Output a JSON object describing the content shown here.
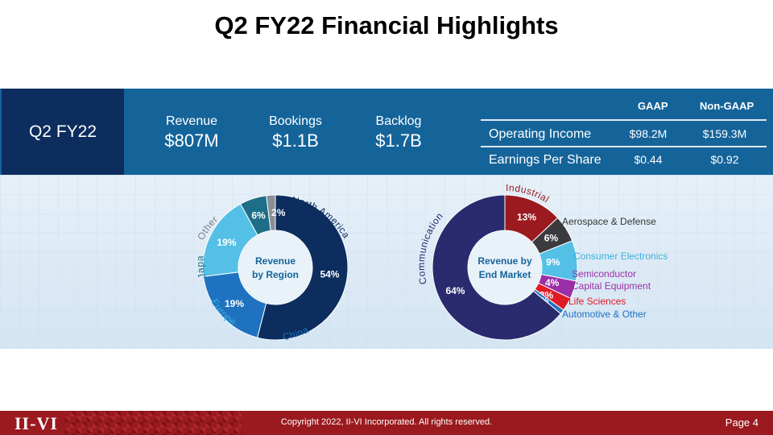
{
  "title": "Q2 FY22 Financial Highlights",
  "period": "Q2 FY22",
  "metrics": [
    {
      "label": "Revenue",
      "value": "$807M"
    },
    {
      "label": "Bookings",
      "value": "$1.1B"
    },
    {
      "label": "Backlog",
      "value": "$1.7B"
    }
  ],
  "table": {
    "headers": [
      "GAAP",
      "Non-GAAP"
    ],
    "rows": [
      {
        "label": "Operating Income",
        "gaap": "$98.2M",
        "non_gaap": "$159.3M"
      },
      {
        "label": "Earnings Per Share",
        "gaap": "$0.44",
        "non_gaap": "$0.92"
      }
    ]
  },
  "chart_data": [
    {
      "type": "pie",
      "title": "Revenue by Region",
      "center_label": [
        "Revenue",
        "by Region"
      ],
      "slices": [
        {
          "name": "North America",
          "value": 54,
          "label": "54%",
          "color": "#0c2d5e"
        },
        {
          "name": "China",
          "value": 19,
          "label": "19%",
          "color": "#1f72c0"
        },
        {
          "name": "Europe",
          "value": 19,
          "label": "19%",
          "color": "#54c0e6"
        },
        {
          "name": "Japan",
          "value": 6,
          "label": "6%",
          "color": "#1e6e88"
        },
        {
          "name": "Other",
          "value": 2,
          "label": "2%",
          "color": "#8a8f96"
        }
      ]
    },
    {
      "type": "pie",
      "title": "Revenue by End Market",
      "center_label": [
        "Revenue by",
        "End Market"
      ],
      "slices": [
        {
          "name": "Industrial",
          "value": 13,
          "label": "13%",
          "color": "#9a1a1f"
        },
        {
          "name": "Aerospace & Defense",
          "value": 6,
          "label": "6%",
          "color": "#3b3b3f"
        },
        {
          "name": "Consumer Electronics",
          "value": 9,
          "label": "9%",
          "color": "#54c0e6"
        },
        {
          "name": "Semiconductor Capital Equipment",
          "value": 4,
          "label": "4%",
          "color": "#9b2fa8"
        },
        {
          "name": "Life Sciences",
          "value": 3,
          "label": "3%",
          "color": "#e01b24"
        },
        {
          "name": "Automotive & Other",
          "value": 1,
          "label": "1%",
          "color": "#1f72c0"
        },
        {
          "name": "Communications",
          "value": 64,
          "label": "64%",
          "color": "#2a2a6e"
        }
      ]
    }
  ],
  "colors": {
    "title": "#000000",
    "band": "#14649a",
    "period_box": "#0c2d5e",
    "footer": "#9a1a1f"
  },
  "footer": {
    "logo": "II-VI",
    "copyright": "Copyright 2022, II-VI Incorporated. All rights reserved.",
    "page": "Page 4"
  }
}
